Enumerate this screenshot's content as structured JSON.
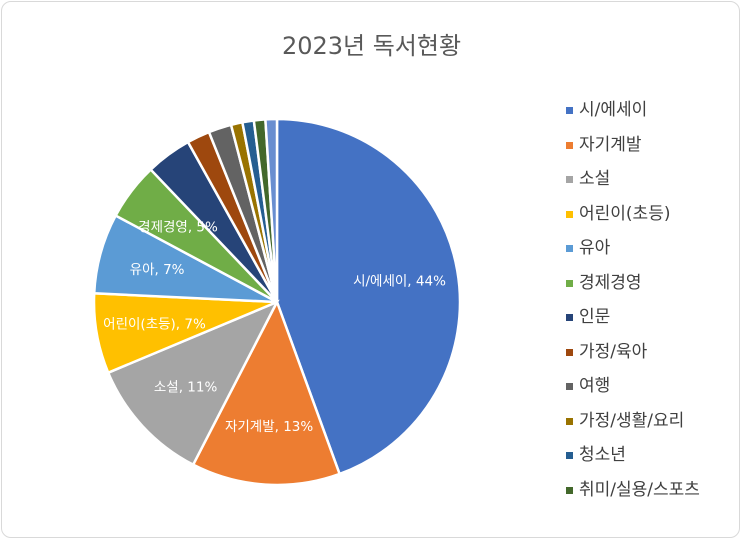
{
  "chart_data": {
    "type": "pie",
    "title": "2023년 독서현황",
    "slices": [
      {
        "name": "시/에세이",
        "value": 44,
        "color": "#4472c4",
        "label": "시/에세이, 44%"
      },
      {
        "name": "자기계발",
        "value": 13,
        "color": "#ed7d31",
        "label": "자기계발, 13%"
      },
      {
        "name": "소설",
        "value": 11,
        "color": "#a5a5a5",
        "label": "소설, 11%"
      },
      {
        "name": "어린이(초등)",
        "value": 7,
        "color": "#ffc000",
        "label": "어린이(초등), 7%"
      },
      {
        "name": "유아",
        "value": 7,
        "color": "#5b9bd5",
        "label": "유아, 7%"
      },
      {
        "name": "경제경영",
        "value": 5,
        "color": "#70ad47",
        "label": "경제경영, 5%"
      },
      {
        "name": "인문",
        "value": 4,
        "color": "#264478",
        "label": ""
      },
      {
        "name": "가정/육아",
        "value": 2,
        "color": "#9e480e",
        "label": ""
      },
      {
        "name": "여행",
        "value": 2,
        "color": "#636363",
        "label": ""
      },
      {
        "name": "가정/생활/요리",
        "value": 1,
        "color": "#997300",
        "label": ""
      },
      {
        "name": "청소년",
        "value": 1,
        "color": "#255e91",
        "label": ""
      },
      {
        "name": "취미/실용/스포츠",
        "value": 1,
        "color": "#43682b",
        "label": ""
      },
      {
        "name": "",
        "value": 1,
        "color": "#698ed0",
        "label": ""
      }
    ],
    "legend_position": "right"
  }
}
